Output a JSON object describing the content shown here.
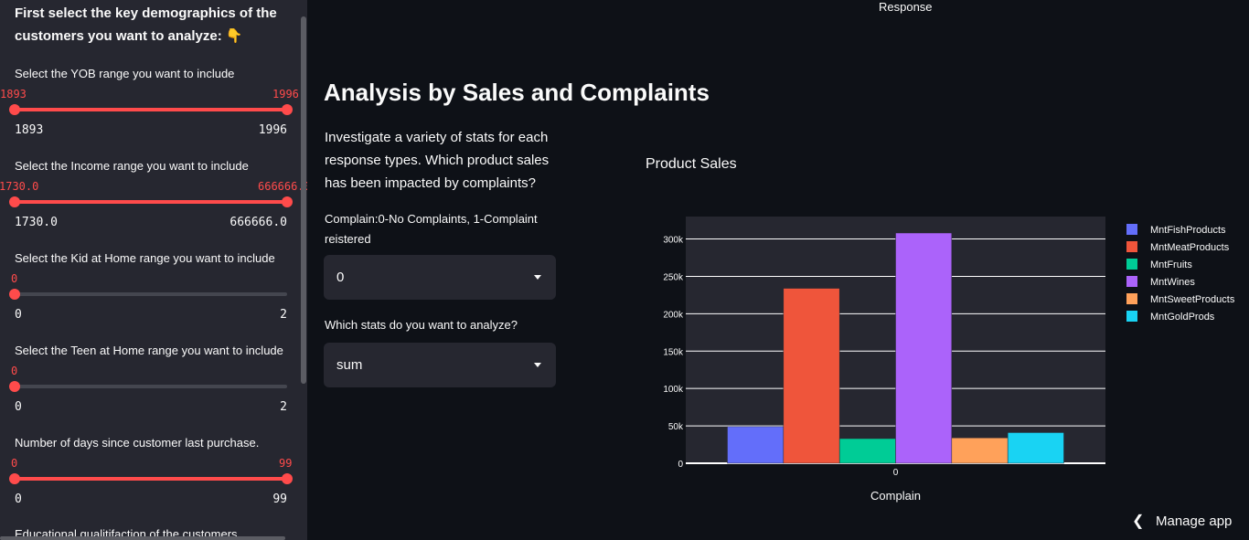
{
  "sidebar": {
    "title": "First select the key demographics of the customers you want to analyze: 👇",
    "sliders": [
      {
        "label": "Select the YOB range you want to include",
        "min": 1893,
        "max": 1996,
        "low": 1893,
        "high": 1996,
        "low_text": "1893",
        "high_text": "1996",
        "min_text": "1893",
        "max_text": "1996"
      },
      {
        "label": "Select the Income range you want to include",
        "min": 1730,
        "max": 666666,
        "low": 1730,
        "high": 666666,
        "low_text": "1730.0",
        "high_text": "666666.0",
        "min_text": "1730.0",
        "max_text": "666666.0"
      },
      {
        "label": "Select the Kid at Home range you want to include",
        "min": 0,
        "max": 2,
        "low": 0,
        "high": 0,
        "low_text": "0",
        "high_text": "",
        "min_text": "0",
        "max_text": "2"
      },
      {
        "label": "Select the Teen at Home range you want to include",
        "min": 0,
        "max": 2,
        "low": 0,
        "high": 0,
        "low_text": "0",
        "high_text": "",
        "min_text": "0",
        "max_text": "2"
      },
      {
        "label": "Number of days since customer last purchase.",
        "min": 0,
        "max": 99,
        "low": 0,
        "high": 99,
        "low_text": "0",
        "high_text": "99",
        "min_text": "0",
        "max_text": "99"
      }
    ],
    "cut_label": "Educational qualitifaction of the customers"
  },
  "main": {
    "response_label": "Response",
    "heading": "Analysis by Sales and Complaints",
    "description": "Investigate a variety of stats for each response types. Which product sales has been impacted by complaints?",
    "complain_label": "Complain:0-No Complaints, 1-Complaint reistered",
    "complain_value": "0",
    "stats_label": "Which stats do you want to analyze?",
    "stats_value": "sum"
  },
  "chart_data": {
    "type": "bar",
    "title": "Product Sales",
    "xlabel": "Complain",
    "ylabel": "",
    "categories": [
      "0"
    ],
    "series": [
      {
        "name": "MntFishProducts",
        "values": [
          49000
        ],
        "color": "#636efa"
      },
      {
        "name": "MntMeatProducts",
        "values": [
          234000
        ],
        "color": "#ef553b"
      },
      {
        "name": "MntFruits",
        "values": [
          33000
        ],
        "color": "#00cc96"
      },
      {
        "name": "MntWines",
        "values": [
          308000
        ],
        "color": "#ab63fa"
      },
      {
        "name": "MntSweetProducts",
        "values": [
          34000
        ],
        "color": "#ffa15a"
      },
      {
        "name": "MntGoldProds",
        "values": [
          41000
        ],
        "color": "#19d3f3"
      }
    ],
    "ylim": [
      0,
      330000
    ],
    "yticks": [
      0,
      50000,
      100000,
      150000,
      200000,
      250000,
      300000
    ],
    "ytick_labels": [
      "0",
      "50k",
      "100k",
      "150k",
      "200k",
      "250k",
      "300k"
    ],
    "grid": true,
    "legend": "right",
    "plot_bg": "#262730"
  },
  "footer": {
    "manage_label": "Manage app"
  },
  "colors": {
    "accent": "#ff4b4b",
    "bg": "#0e1117",
    "sidebar_bg": "#262730"
  }
}
